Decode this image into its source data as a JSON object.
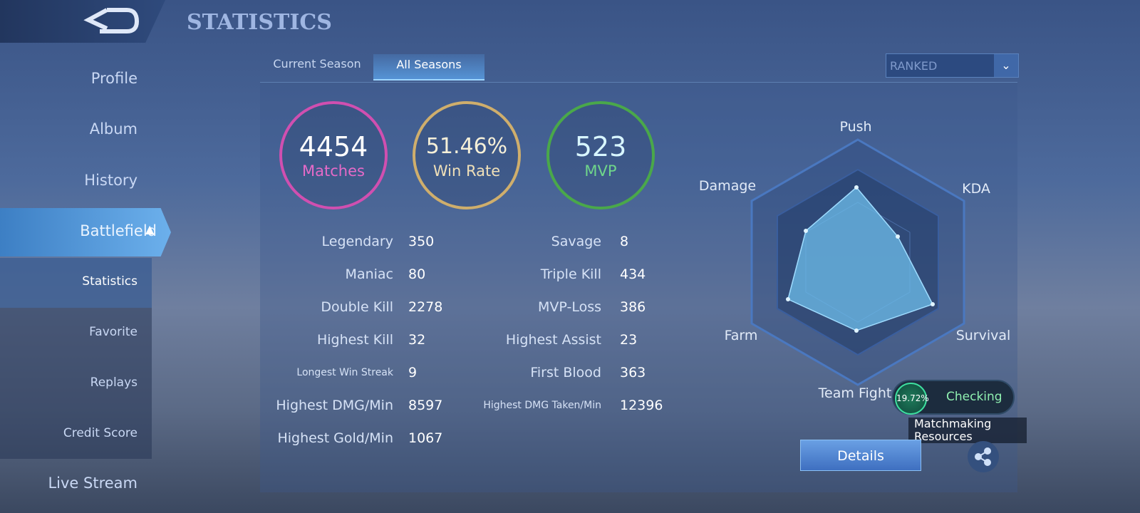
{
  "header": {
    "title": "STATISTICS"
  },
  "sidebar": {
    "items": [
      "Profile",
      "Album",
      "History",
      "Battlefield",
      "Statistics",
      "Favorite",
      "Replays",
      "Credit Score",
      "Live Stream"
    ]
  },
  "tabs": [
    "Current Season",
    "All Seasons"
  ],
  "mode_dropdown": "RANKED",
  "summary": [
    {
      "value": "4454",
      "label": "Matches"
    },
    {
      "value": "51.46%",
      "label": "Win Rate"
    },
    {
      "value": "523",
      "label": "MVP"
    }
  ],
  "stats_left": [
    {
      "label": "Legendary",
      "value": "350"
    },
    {
      "label": "Maniac",
      "value": "80"
    },
    {
      "label": "Double Kill",
      "value": "2278"
    },
    {
      "label": "Highest Kill",
      "value": "32"
    },
    {
      "label": "Longest Win Streak",
      "value": "9"
    },
    {
      "label": "Highest DMG/Min",
      "value": "8597"
    },
    {
      "label": "Highest Gold/Min",
      "value": "1067"
    }
  ],
  "stats_right": [
    {
      "label": "Savage",
      "value": "8"
    },
    {
      "label": "Triple Kill",
      "value": "434"
    },
    {
      "label": "MVP-Loss",
      "value": "386"
    },
    {
      "label": "Highest Assist",
      "value": "23"
    },
    {
      "label": "First Blood",
      "value": "363"
    },
    {
      "label": "Highest DMG Taken/Min",
      "value": "12396"
    }
  ],
  "radar_labels": [
    "Push",
    "KDA",
    "Survival",
    "Team Fight",
    "Farm",
    "Damage"
  ],
  "details_button": "Details",
  "matchmaking": {
    "percent": "19.72%",
    "status": "Checking",
    "label": "Matchmaking Resources"
  }
}
